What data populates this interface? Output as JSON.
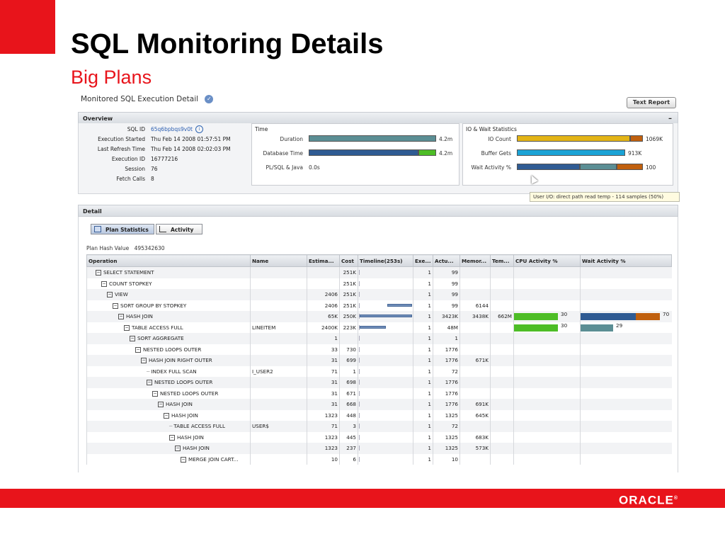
{
  "slide": {
    "title": "SQL Monitoring Details",
    "subtitle": "Big Plans",
    "logo": "ORACLE"
  },
  "colors": {
    "oracle_red": "#e8141b",
    "teal_bar": "#5b8e94",
    "blue_bar": "#2f5b93",
    "green_bar": "#4dbd26",
    "gold_bar": "#e3b416",
    "orange_bar": "#c0600e",
    "cyan_bar": "#1ba3d6"
  },
  "header": {
    "title": "Monitored SQL Execution Detail",
    "text_report_button": "Text Report"
  },
  "overview": {
    "section_title": "Overview",
    "collapse_glyph": "–",
    "fields": [
      {
        "label": "SQL ID",
        "value": "65q6bpbqs9v0t"
      },
      {
        "label": "Execution Started",
        "value": "Thu Feb 14 2008 01:57:51 PM"
      },
      {
        "label": "Last Refresh Time",
        "value": "Thu Feb 14 2008 02:02:03 PM"
      },
      {
        "label": "Execution ID",
        "value": "16777216"
      },
      {
        "label": "Session",
        "value": "76"
      },
      {
        "label": "Fetch Calls",
        "value": "8"
      }
    ],
    "time_panel": {
      "title": "Time",
      "rows": [
        {
          "label": "Duration",
          "value": "4.2m",
          "segments": [
            {
              "color": "#5b8e94",
              "fraction": 1.0
            }
          ]
        },
        {
          "label": "Database Time",
          "value": "4.2m",
          "segments": [
            {
              "color": "#2f5b93",
              "fraction": 0.86
            },
            {
              "color": "#4dbd26",
              "fraction": 0.14
            }
          ]
        },
        {
          "label": "PL/SQL & Java",
          "value": "0.0s",
          "segments": []
        }
      ]
    },
    "io_panel": {
      "title": "IO & Wait Statistics",
      "rows": [
        {
          "label": "IO Count",
          "value": "1069K",
          "segments": [
            {
              "color": "#e3b416",
              "fraction": 0.9
            },
            {
              "color": "#c0600e",
              "fraction": 0.1
            }
          ]
        },
        {
          "label": "Buffer Gets",
          "value": "913K",
          "segments": [
            {
              "color": "#1ba3d6",
              "fraction": 0.86
            }
          ]
        },
        {
          "label": "Wait Activity %",
          "value": "100",
          "segments": [
            {
              "color": "#2f5b93",
              "fraction": 0.5
            },
            {
              "color": "#5b8e94",
              "fraction": 0.29
            },
            {
              "color": "#c0600e",
              "fraction": 0.21
            }
          ]
        }
      ]
    },
    "tooltip": "User I/O: direct path read temp - 114 samples (50%)"
  },
  "detail": {
    "section_title": "Detail",
    "tabs": [
      {
        "label": "Plan Statistics",
        "active": true
      },
      {
        "label": "Activity",
        "active": false
      }
    ],
    "plan_hash_label": "Plan Hash Value",
    "plan_hash_value": "495342630",
    "columns": [
      "Operation",
      "Name",
      "Estima...",
      "Cost",
      "Timeline(253s)",
      "Exe...",
      "Actu...",
      "Memor...",
      "Tem...",
      "CPU Activity %",
      "Wait Activity %"
    ],
    "rows": [
      {
        "op": "SELECT STATEMENT",
        "indent": 0,
        "sign": "⊟",
        "name": "",
        "est": "",
        "cost": "251K",
        "tl_start": null,
        "tl_end": null,
        "exe": "1",
        "act": "99",
        "mem": "",
        "tem": "",
        "cpu": null,
        "wait": null
      },
      {
        "op": "COUNT STOPKEY",
        "indent": 1,
        "sign": "⊟",
        "name": "",
        "est": "",
        "cost": "251K",
        "tl_start": null,
        "tl_end": null,
        "exe": "1",
        "act": "99",
        "mem": "",
        "tem": "",
        "cpu": null,
        "wait": null
      },
      {
        "op": "VIEW",
        "indent": 2,
        "sign": "⊟",
        "name": "",
        "est": "2406",
        "cost": "251K",
        "tl_start": null,
        "tl_end": null,
        "exe": "1",
        "act": "99",
        "mem": "",
        "tem": "",
        "cpu": null,
        "wait": null
      },
      {
        "op": "SORT GROUP BY STOPKEY",
        "indent": 3,
        "sign": "⊟",
        "name": "",
        "est": "2406",
        "cost": "251K",
        "tl_start": 0.53,
        "tl_end": 1.0,
        "exe": "1",
        "act": "99",
        "mem": "6144",
        "tem": "",
        "cpu": null,
        "wait": null
      },
      {
        "op": "HASH JOIN",
        "indent": 4,
        "sign": "⊟",
        "name": "",
        "est": "65K",
        "cost": "250K",
        "tl_start": 0.0,
        "tl_end": 1.0,
        "exe": "1",
        "act": "3423K",
        "mem": "3438K",
        "tem": "662M",
        "cpu": {
          "value": 30,
          "label": "30"
        },
        "wait": {
          "value": 70,
          "label": "70",
          "segments": [
            {
              "color": "#2f5b93",
              "fraction": 0.7
            },
            {
              "color": "#c0600e",
              "fraction": 0.3
            }
          ]
        }
      },
      {
        "op": "TABLE ACCESS FULL",
        "indent": 5,
        "sign": "⊟",
        "name": "LINEITEM",
        "est": "2400K",
        "cost": "223K",
        "tl_start": 0.0,
        "tl_end": 0.5,
        "exe": "1",
        "act": "48M",
        "mem": "",
        "tem": "",
        "cpu": {
          "value": 30,
          "label": "30"
        },
        "wait": {
          "value": 29,
          "label": "29",
          "segments": [
            {
              "color": "#5b8e94",
              "fraction": 1.0
            }
          ]
        }
      },
      {
        "op": "SORT AGGREGATE",
        "indent": 6,
        "sign": "⊟",
        "name": "",
        "est": "1",
        "cost": "",
        "tl_start": null,
        "tl_end": null,
        "exe": "1",
        "act": "1",
        "mem": "",
        "tem": "",
        "cpu": null,
        "wait": null
      },
      {
        "op": "NESTED LOOPS OUTER",
        "indent": 7,
        "sign": "⊟",
        "name": "",
        "est": "33",
        "cost": "730",
        "tl_start": null,
        "tl_end": null,
        "exe": "1",
        "act": "1776",
        "mem": "",
        "tem": "",
        "cpu": null,
        "wait": null
      },
      {
        "op": "HASH JOIN RIGHT OUTER",
        "indent": 8,
        "sign": "⊟",
        "name": "",
        "est": "31",
        "cost": "699",
        "tl_start": null,
        "tl_end": null,
        "exe": "1",
        "act": "1776",
        "mem": "671K",
        "tem": "",
        "cpu": null,
        "wait": null
      },
      {
        "op": "INDEX FULL SCAN",
        "indent": 9,
        "sign": "",
        "name": "I_USER2",
        "est": "71",
        "cost": "1",
        "tl_start": null,
        "tl_end": null,
        "exe": "1",
        "act": "72",
        "mem": "",
        "tem": "",
        "cpu": null,
        "wait": null
      },
      {
        "op": "NESTED LOOPS OUTER",
        "indent": 9,
        "sign": "⊟",
        "name": "",
        "est": "31",
        "cost": "698",
        "tl_start": null,
        "tl_end": null,
        "exe": "1",
        "act": "1776",
        "mem": "",
        "tem": "",
        "cpu": null,
        "wait": null
      },
      {
        "op": "NESTED LOOPS OUTER",
        "indent": 10,
        "sign": "⊟",
        "name": "",
        "est": "31",
        "cost": "671",
        "tl_start": null,
        "tl_end": null,
        "exe": "1",
        "act": "1776",
        "mem": "",
        "tem": "",
        "cpu": null,
        "wait": null
      },
      {
        "op": "HASH JOIN",
        "indent": 11,
        "sign": "⊟",
        "name": "",
        "est": "31",
        "cost": "668",
        "tl_start": null,
        "tl_end": null,
        "exe": "1",
        "act": "1776",
        "mem": "691K",
        "tem": "",
        "cpu": null,
        "wait": null
      },
      {
        "op": "HASH JOIN",
        "indent": 12,
        "sign": "⊟",
        "name": "",
        "est": "1323",
        "cost": "448",
        "tl_start": null,
        "tl_end": null,
        "exe": "1",
        "act": "1325",
        "mem": "645K",
        "tem": "",
        "cpu": null,
        "wait": null
      },
      {
        "op": "TABLE ACCESS FULL",
        "indent": 13,
        "sign": "",
        "name": "USER$",
        "est": "71",
        "cost": "3",
        "tl_start": null,
        "tl_end": null,
        "exe": "1",
        "act": "72",
        "mem": "",
        "tem": "",
        "cpu": null,
        "wait": null
      },
      {
        "op": "HASH JOIN",
        "indent": 13,
        "sign": "⊟",
        "name": "",
        "est": "1323",
        "cost": "445",
        "tl_start": null,
        "tl_end": null,
        "exe": "1",
        "act": "1325",
        "mem": "683K",
        "tem": "",
        "cpu": null,
        "wait": null
      },
      {
        "op": "HASH JOIN",
        "indent": 14,
        "sign": "⊟",
        "name": "",
        "est": "1323",
        "cost": "237",
        "tl_start": null,
        "tl_end": null,
        "exe": "1",
        "act": "1325",
        "mem": "573K",
        "tem": "",
        "cpu": null,
        "wait": null
      },
      {
        "op": "MERGE JOIN CART...",
        "indent": 15,
        "sign": "⊟",
        "name": "",
        "est": "10",
        "cost": "6",
        "tl_start": null,
        "tl_end": null,
        "exe": "1",
        "act": "10",
        "mem": "",
        "tem": "",
        "cpu": null,
        "wait": null
      }
    ]
  }
}
